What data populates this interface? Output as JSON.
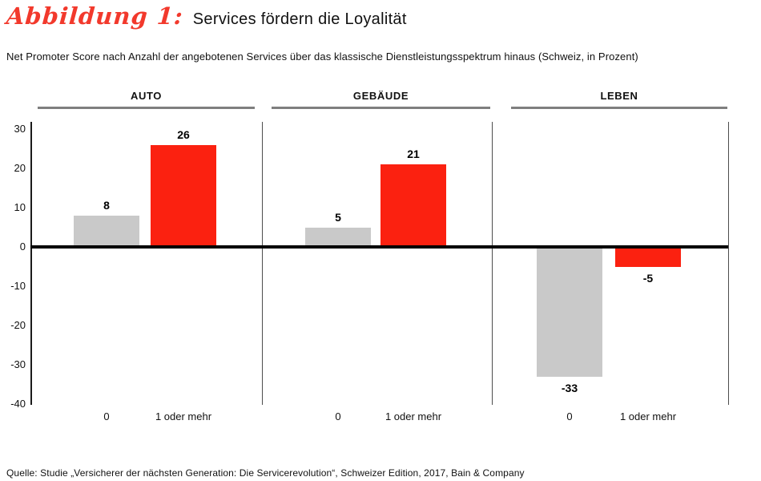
{
  "title": {
    "figure_label": "Abbildung 1:",
    "text": "Services fördern die Loyalität"
  },
  "subtitle": "Net Promoter Score nach Anzahl der angebotenen Services über das klassische Dienstleistungsspektrum hinaus (Schweiz, in Prozent)",
  "source": "Quelle: Studie „Versicherer der nächsten Generation: Die Servicerevolution“, Schweizer Edition, 2017, Bain & Company",
  "colors": {
    "figure_label_red": "#f2392c",
    "bar_gray": "#c9c9c9",
    "bar_red": "#fb2110",
    "header_underline": "#7f7f7f",
    "zero_line": "#000000"
  },
  "chart_data": {
    "type": "bar",
    "panels": [
      {
        "label": "AUTO",
        "categories": [
          "0",
          "1 oder mehr"
        ],
        "values": [
          8,
          26
        ]
      },
      {
        "label": "GEBÄUDE",
        "categories": [
          "0",
          "1 oder mehr"
        ],
        "values": [
          5,
          21
        ]
      },
      {
        "label": "LEBEN",
        "categories": [
          "0",
          "1 oder mehr"
        ],
        "values": [
          -33,
          -5
        ]
      }
    ],
    "bar_colors": [
      "#c9c9c9",
      "#fb2110"
    ],
    "y_ticks": [
      30,
      20,
      10,
      0,
      -10,
      -20,
      -30,
      -40
    ],
    "ylim": [
      -40,
      30
    ],
    "ylabel": "",
    "grid": false,
    "legend": "none",
    "value_labels": true
  }
}
